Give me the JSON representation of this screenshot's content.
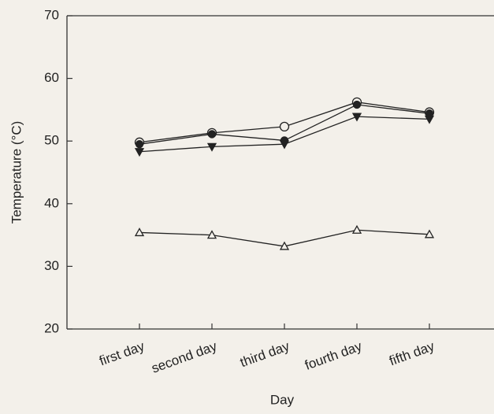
{
  "chart_data": {
    "type": "line",
    "x_label": "Day",
    "y_label": "Temperature (°C)",
    "categories": [
      "first day",
      "second day",
      "third day",
      "fourth day",
      "fifth day"
    ],
    "series": [
      {
        "color": "#222222",
        "marker": "circle-open",
        "values": [
          49.8,
          51.3,
          52.3,
          56.2,
          54.6
        ]
      },
      {
        "color": "#222222",
        "marker": "circle-filled",
        "values": [
          49.5,
          51.1,
          50.1,
          55.8,
          54.4
        ]
      },
      {
        "color": "#222222",
        "marker": "triangle-down-filled",
        "values": [
          48.3,
          49.1,
          49.5,
          53.9,
          53.5
        ]
      },
      {
        "color": "#222222",
        "marker": "triangle-up-open",
        "values": [
          35.4,
          35.0,
          33.2,
          35.8,
          35.1
        ]
      }
    ],
    "ylim": [
      20,
      70
    ],
    "yticks": [
      20,
      30,
      40,
      50,
      60,
      70
    ],
    "grid": false
  }
}
